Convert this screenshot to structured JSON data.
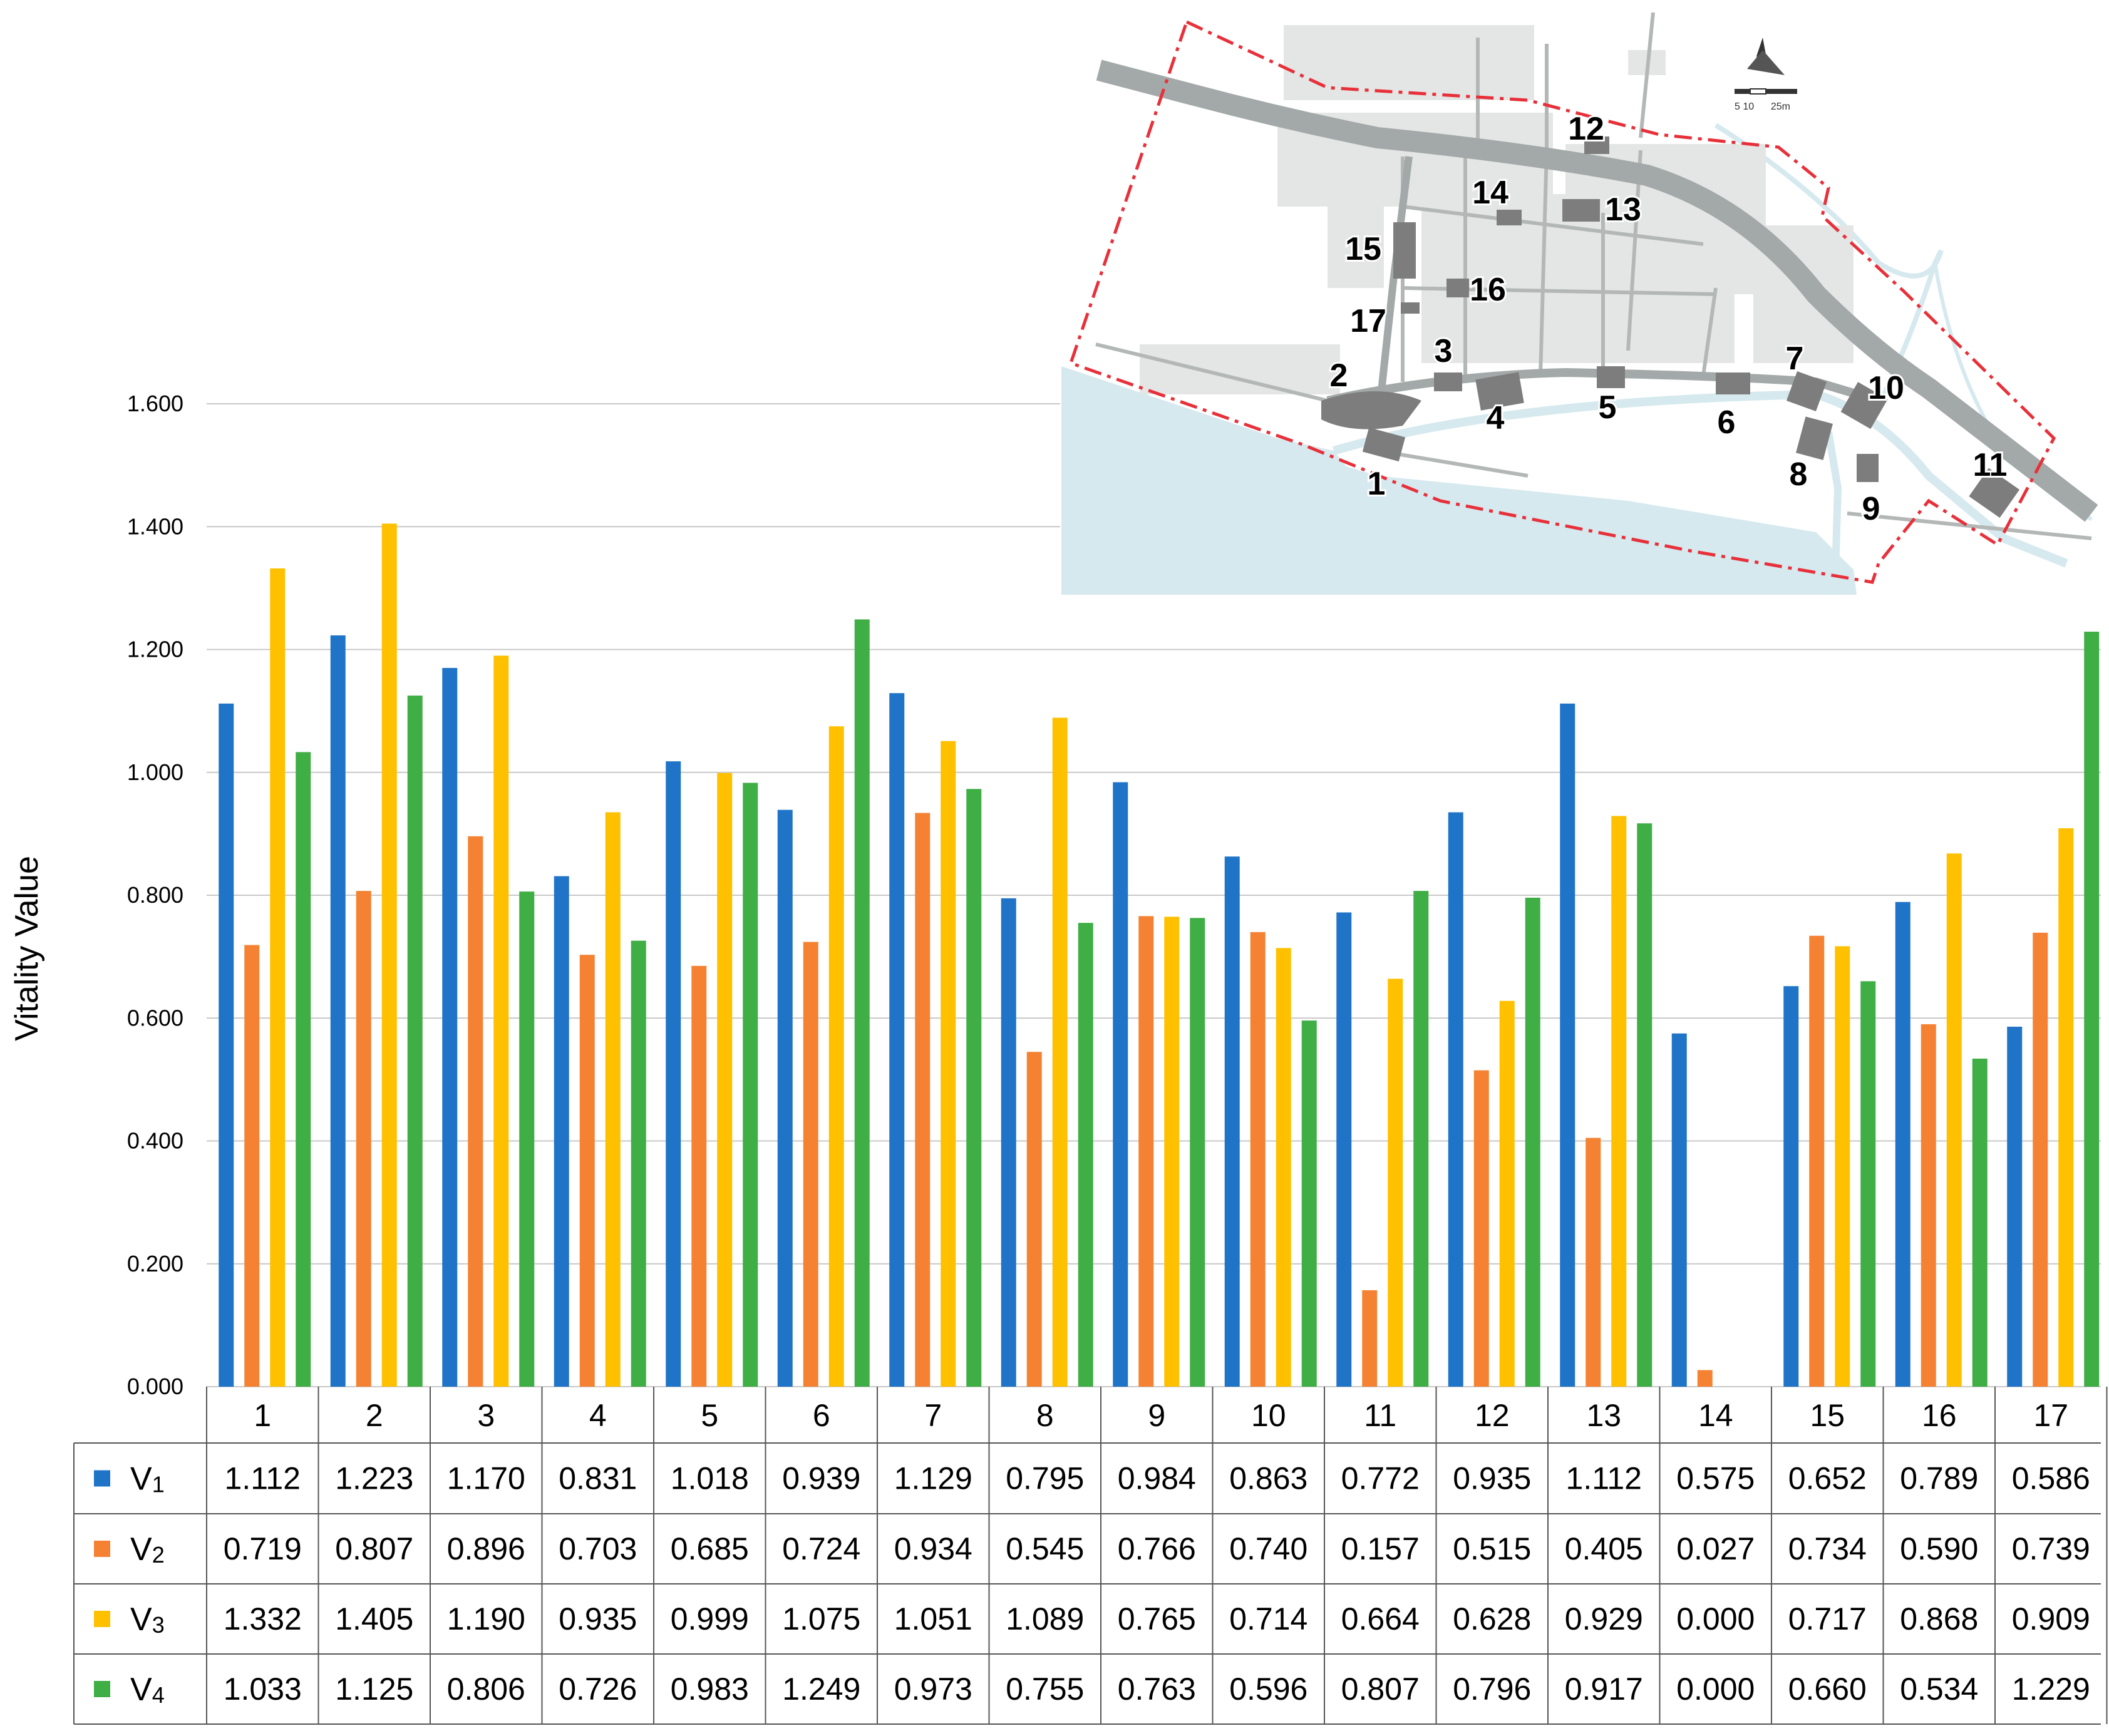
{
  "chart_data": {
    "type": "bar",
    "title": "",
    "xlabel": "",
    "ylabel": "Vitality Value",
    "ylim": [
      0,
      1.6
    ],
    "yticks": [
      "0.000",
      "0.200",
      "0.400",
      "0.600",
      "0.800",
      "1.000",
      "1.200",
      "1.400",
      "1.600"
    ],
    "grid": true,
    "legend_placement": "data table rows below the chart",
    "categories": [
      "1",
      "2",
      "3",
      "4",
      "5",
      "6",
      "7",
      "8",
      "9",
      "10",
      "11",
      "12",
      "13",
      "14",
      "15",
      "16",
      "17"
    ],
    "series": [
      {
        "name": "V",
        "subscript": "1",
        "color": "#1f74c8",
        "values": [
          1.112,
          1.223,
          1.17,
          0.831,
          1.018,
          0.939,
          1.129,
          0.795,
          0.984,
          0.863,
          0.772,
          0.935,
          1.112,
          0.575,
          0.652,
          0.789,
          0.586
        ],
        "labels": [
          "1.112",
          "1.223",
          "1.170",
          "0.831",
          "1.018",
          "0.939",
          "1.129",
          "0.795",
          "0.984",
          "0.863",
          "0.772",
          "0.935",
          "1.112",
          "0.575",
          "0.652",
          "0.789",
          "0.586"
        ]
      },
      {
        "name": "V",
        "subscript": "2",
        "color": "#f58233",
        "values": [
          0.719,
          0.807,
          0.896,
          0.703,
          0.685,
          0.724,
          0.934,
          0.545,
          0.766,
          0.74,
          0.157,
          0.515,
          0.405,
          0.027,
          0.734,
          0.59,
          0.739
        ],
        "labels": [
          "0.719",
          "0.807",
          "0.896",
          "0.703",
          "0.685",
          "0.724",
          "0.934",
          "0.545",
          "0.766",
          "0.740",
          "0.157",
          "0.515",
          "0.405",
          "0.027",
          "0.734",
          "0.590",
          "0.739"
        ]
      },
      {
        "name": "V",
        "subscript": "3",
        "color": "#ffc000",
        "values": [
          1.332,
          1.405,
          1.19,
          0.935,
          0.999,
          1.075,
          1.051,
          1.089,
          0.765,
          0.714,
          0.664,
          0.628,
          0.929,
          0.0,
          0.717,
          0.868,
          0.909
        ],
        "labels": [
          "1.332",
          "1.405",
          "1.190",
          "0.935",
          "0.999",
          "1.075",
          "1.051",
          "1.089",
          "0.765",
          "0.714",
          "0.664",
          "0.628",
          "0.929",
          "0.000",
          "0.717",
          "0.868",
          "0.909"
        ]
      },
      {
        "name": "V",
        "subscript": "4",
        "color": "#3fae45",
        "values": [
          1.033,
          1.125,
          0.806,
          0.726,
          0.983,
          1.249,
          0.973,
          0.755,
          0.763,
          0.596,
          0.807,
          0.796,
          0.917,
          0.0,
          0.66,
          0.534,
          1.229
        ],
        "labels": [
          "1.033",
          "1.125",
          "0.806",
          "0.726",
          "0.983",
          "1.249",
          "0.973",
          "0.755",
          "0.763",
          "0.596",
          "0.807",
          "0.796",
          "0.917",
          "0.000",
          "0.660",
          "0.534",
          "1.229"
        ]
      }
    ]
  },
  "inset_map": {
    "scale_label": "5 10      25m",
    "site_labels": [
      "1",
      "2",
      "3",
      "4",
      "5",
      "6",
      "7",
      "8",
      "9",
      "10",
      "11",
      "12",
      "13",
      "14",
      "15",
      "16",
      "17"
    ],
    "colors": {
      "water": "#d6e9ef",
      "road": "#a3a9a8",
      "boundary": "#e8303a",
      "building": "#7d7d7d",
      "block": "#e4e6e5"
    }
  }
}
